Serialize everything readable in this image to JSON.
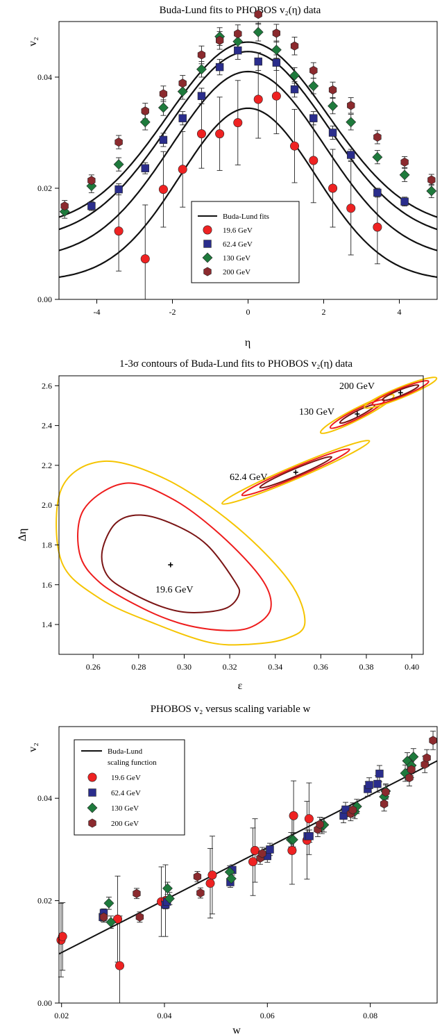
{
  "colors": {
    "c19": "#ee2222",
    "c62": "#2a2d8c",
    "c130": "#1e7a3c",
    "c200": "#8b2a2e",
    "fit": "#111111",
    "sig1": "#7a1414",
    "sig2": "#ee1c1c",
    "sig3": "#f5c400"
  },
  "chart_data": [
    {
      "type": "scatter",
      "title": "Buda-Lund fits to PHOBOS v₂(η) data",
      "xlabel": "η",
      "ylabel": "v₂",
      "xlim": [
        -5,
        5
      ],
      "ylim": [
        0,
        0.05
      ],
      "xticks": [
        -4,
        -2,
        0,
        2,
        4
      ],
      "yticks": [
        0.0,
        0.02,
        0.04
      ],
      "xtick_labels": [
        "-4",
        "-2",
        "0",
        "2",
        "4"
      ],
      "ytick_labels": [
        "0.00",
        "0.02",
        "0.04"
      ],
      "legend": {
        "position": "bottom-center",
        "entries": [
          "Buda-Lund fits",
          "19.6 GeV",
          "62.4 GeV",
          "130 GeV",
          "200 GeV"
        ]
      },
      "series": [
        {
          "name": "19.6 GeV",
          "marker": "circle",
          "color_key": "c19",
          "x": [
            -3.42,
            -2.72,
            -2.24,
            -1.73,
            -1.23,
            -0.75,
            -0.27,
            0.27,
            0.75,
            1.23,
            1.73,
            2.24,
            2.72,
            3.42
          ],
          "y": [
            0.0123,
            0.0073,
            0.0198,
            0.0234,
            0.0298,
            0.0298,
            0.0318,
            0.036,
            0.0366,
            0.0276,
            0.025,
            0.02,
            0.0164,
            0.013
          ],
          "err": [
            0.0072,
            0.0097,
            0.0068,
            0.0068,
            0.0062,
            0.0066,
            0.0076,
            0.007,
            0.0068,
            0.0066,
            0.0076,
            0.007,
            0.0084,
            0.0066
          ]
        },
        {
          "name": "62.4 GeV",
          "marker": "square",
          "color_key": "c62",
          "x": [
            -4.14,
            -3.42,
            -2.72,
            -2.24,
            -1.73,
            -1.23,
            -0.75,
            -0.27,
            0.27,
            0.75,
            1.23,
            1.73,
            2.24,
            2.72,
            3.42,
            4.14
          ],
          "y": [
            0.0168,
            0.0198,
            0.0236,
            0.0287,
            0.0326,
            0.0366,
            0.0418,
            0.0448,
            0.0428,
            0.0426,
            0.0378,
            0.0326,
            0.03,
            0.026,
            0.0192,
            0.0176
          ],
          "err": [
            0.0008,
            0.001,
            0.001,
            0.0012,
            0.0012,
            0.0014,
            0.0014,
            0.0016,
            0.0016,
            0.0014,
            0.0014,
            0.0012,
            0.0012,
            0.001,
            0.0008,
            0.0008
          ]
        },
        {
          "name": "130 GeV",
          "marker": "diamond",
          "color_key": "c130",
          "x": [
            -4.85,
            -4.14,
            -3.42,
            -2.72,
            -2.24,
            -1.73,
            -1.23,
            -0.75,
            -0.27,
            0.27,
            0.75,
            1.23,
            1.73,
            2.24,
            2.72,
            3.42,
            4.14,
            4.85
          ],
          "y": [
            0.0158,
            0.0204,
            0.0243,
            0.0319,
            0.0345,
            0.0374,
            0.0414,
            0.0473,
            0.0464,
            0.0481,
            0.0449,
            0.0403,
            0.0384,
            0.0348,
            0.0319,
            0.0256,
            0.0224,
            0.0195
          ],
          "err": [
            0.0012,
            0.0012,
            0.0012,
            0.0014,
            0.0014,
            0.0014,
            0.0014,
            0.0016,
            0.0016,
            0.0016,
            0.0016,
            0.0014,
            0.0014,
            0.0014,
            0.0014,
            0.0012,
            0.0012,
            0.0012
          ]
        },
        {
          "name": "200 GeV",
          "marker": "hexagon",
          "color_key": "c200",
          "x": [
            -4.85,
            -4.14,
            -3.42,
            -2.72,
            -2.24,
            -1.73,
            -1.23,
            -0.75,
            -0.27,
            0.27,
            0.75,
            1.23,
            1.73,
            2.24,
            2.72,
            3.42,
            4.14,
            4.85
          ],
          "y": [
            0.0168,
            0.0214,
            0.0283,
            0.0339,
            0.037,
            0.0389,
            0.044,
            0.0466,
            0.0478,
            0.0513,
            0.0479,
            0.0456,
            0.0412,
            0.0377,
            0.0349,
            0.0292,
            0.0247,
            0.0215
          ],
          "err": [
            0.001,
            0.001,
            0.0012,
            0.0014,
            0.0014,
            0.0014,
            0.0016,
            0.0016,
            0.0016,
            0.0018,
            0.0016,
            0.0016,
            0.0014,
            0.0014,
            0.0014,
            0.0012,
            0.001,
            0.001
          ]
        },
        {
          "name": "Buda-Lund fits",
          "type": "line",
          "color_key": "fit",
          "curves": [
            {
              "peak": 0.0344,
              "width": 1.8,
              "edge": 0.004
            },
            {
              "peak": 0.041,
              "width": 2.02,
              "edge": 0.0088
            },
            {
              "peak": 0.0446,
              "width": 2.1,
              "edge": 0.0126
            },
            {
              "peak": 0.0463,
              "width": 2.12,
              "edge": 0.0148
            }
          ]
        }
      ]
    },
    {
      "type": "contour",
      "title": "1-3σ contours of Buda-Lund fits to PHOBOS v₂(η) data",
      "xlabel": "ε",
      "ylabel": "Δη",
      "xlim": [
        0.245,
        0.405
      ],
      "ylim": [
        1.25,
        2.65
      ],
      "xticks": [
        0.26,
        0.28,
        0.3,
        0.32,
        0.34,
        0.36,
        0.38,
        0.4
      ],
      "yticks": [
        1.4,
        1.6,
        1.8,
        2.0,
        2.2,
        2.4,
        2.6
      ],
      "xtick_labels": [
        "0.26",
        "0.28",
        "0.30",
        "0.32",
        "0.34",
        "0.36",
        "0.38",
        "0.40"
      ],
      "ytick_labels": [
        "1.4",
        "1.6",
        "1.8",
        "2.0",
        "2.2",
        "2.4",
        "2.6"
      ],
      "sets": [
        {
          "label": "19.6 GeV",
          "center": [
            0.294,
            1.7
          ],
          "sigma1": [
            [
              0.281,
              1.95
            ],
            [
              0.296,
              1.9
            ],
            [
              0.31,
              1.8
            ],
            [
              0.322,
              1.62
            ],
            [
              0.324,
              1.55
            ],
            [
              0.318,
              1.48
            ],
            [
              0.303,
              1.46
            ],
            [
              0.29,
              1.49
            ],
            [
              0.275,
              1.57
            ],
            [
              0.266,
              1.65
            ],
            [
              0.264,
              1.77
            ],
            [
              0.27,
              1.91
            ]
          ],
          "sigma2": [
            [
              0.274,
              2.11
            ],
            [
              0.295,
              2.03
            ],
            [
              0.316,
              1.85
            ],
            [
              0.334,
              1.63
            ],
            [
              0.338,
              1.48
            ],
            [
              0.33,
              1.39
            ],
            [
              0.318,
              1.37
            ],
            [
              0.3,
              1.4
            ],
            [
              0.282,
              1.48
            ],
            [
              0.263,
              1.61
            ],
            [
              0.254,
              1.76
            ],
            [
              0.256,
              1.98
            ]
          ],
          "sigma3": [
            [
              0.264,
              2.22
            ],
            [
              0.292,
              2.13
            ],
            [
              0.322,
              1.9
            ],
            [
              0.346,
              1.62
            ],
            [
              0.353,
              1.41
            ],
            [
              0.345,
              1.33
            ],
            [
              0.328,
              1.3
            ],
            [
              0.311,
              1.31
            ],
            [
              0.288,
              1.4
            ],
            [
              0.263,
              1.53
            ],
            [
              0.246,
              1.72
            ],
            [
              0.246,
              2.08
            ]
          ]
        },
        {
          "label": "62.4 GeV",
          "center": [
            0.349,
            2.165
          ],
          "angle_deg": -23,
          "sigma1": [
            0.009,
            0.033
          ],
          "sigma2": [
            0.0135,
            0.045
          ],
          "sigma3": [
            0.0185,
            0.058
          ]
        },
        {
          "label": "130 GeV",
          "center": [
            0.376,
            2.458
          ],
          "angle_deg": -27,
          "sigma1": [
            0.0045,
            0.026
          ],
          "sigma2": [
            0.007,
            0.04
          ],
          "sigma3": [
            0.0095,
            0.052
          ]
        },
        {
          "label": "200 GeV",
          "center": [
            0.395,
            2.565
          ],
          "angle_deg": -22,
          "sigma1": [
            0.0045,
            0.026
          ],
          "sigma2": [
            0.007,
            0.037
          ],
          "sigma3": [
            0.009,
            0.048
          ]
        }
      ]
    },
    {
      "type": "scatter",
      "title": "PHOBOS v₂ versus scaling variable w",
      "xlabel": "w",
      "ylabel": "v₂",
      "xlim": [
        0.0195,
        0.093
      ],
      "ylim": [
        0,
        0.054
      ],
      "xticks": [
        0.02,
        0.04,
        0.06,
        0.08
      ],
      "yticks": [
        0.0,
        0.02,
        0.04
      ],
      "xtick_labels": [
        "0.02",
        "0.04",
        "0.06",
        "0.08"
      ],
      "ytick_labels": [
        "0.00",
        "0.02",
        "0.04"
      ],
      "legend": {
        "position": "top-left",
        "entries": [
          "Buda-Lund",
          "scaling function",
          "19.6 GeV",
          "62.4 GeV",
          "130 GeV",
          "200 GeV"
        ]
      },
      "series": [
        {
          "name": "19.6 GeV",
          "marker": "circle",
          "color_key": "c19",
          "x": [
            0.0199,
            0.0202,
            0.0309,
            0.0313,
            0.0394,
            0.0402,
            0.0489,
            0.0493,
            0.0572,
            0.0576,
            0.0648,
            0.0651,
            0.0677,
            0.0681
          ],
          "y": [
            0.0123,
            0.013,
            0.0164,
            0.0073,
            0.0198,
            0.02,
            0.0234,
            0.025,
            0.0276,
            0.0298,
            0.0298,
            0.0366,
            0.0318,
            0.036
          ],
          "err": [
            0.0072,
            0.0066,
            0.0084,
            0.0097,
            0.0068,
            0.007,
            0.0068,
            0.0076,
            0.0066,
            0.0062,
            0.0066,
            0.0068,
            0.0076,
            0.007
          ]
        },
        {
          "name": "62.4 GeV",
          "marker": "square",
          "color_key": "c62",
          "x": [
            0.028,
            0.0282,
            0.0402,
            0.0405,
            0.0528,
            0.0532,
            0.06,
            0.0605,
            0.0678,
            0.0682,
            0.0748,
            0.0752,
            0.0795,
            0.0798,
            0.0814,
            0.0818
          ],
          "y": [
            0.0168,
            0.0176,
            0.0192,
            0.0198,
            0.0236,
            0.026,
            0.0287,
            0.03,
            0.0326,
            0.0326,
            0.0366,
            0.0378,
            0.0418,
            0.0426,
            0.0428,
            0.0448
          ],
          "err": [
            0.0008,
            0.0008,
            0.0008,
            0.001,
            0.001,
            0.001,
            0.0012,
            0.0012,
            0.0012,
            0.0012,
            0.0014,
            0.0014,
            0.0014,
            0.0014,
            0.0016,
            0.0016
          ]
        },
        {
          "name": "130 GeV",
          "marker": "diamond",
          "color_key": "c130",
          "x": [
            0.0292,
            0.0296,
            0.0406,
            0.041,
            0.0527,
            0.053,
            0.0646,
            0.065,
            0.0706,
            0.071,
            0.077,
            0.0774,
            0.0827,
            0.083,
            0.0868,
            0.0872,
            0.088,
            0.0884
          ],
          "y": [
            0.0195,
            0.0158,
            0.0224,
            0.0204,
            0.0256,
            0.0243,
            0.0319,
            0.0319,
            0.0345,
            0.0348,
            0.0374,
            0.0384,
            0.0403,
            0.0414,
            0.0449,
            0.0473,
            0.0464,
            0.0481
          ],
          "err": [
            0.0012,
            0.0012,
            0.0012,
            0.0012,
            0.0012,
            0.0012,
            0.0014,
            0.0014,
            0.0014,
            0.0014,
            0.0014,
            0.0014,
            0.0014,
            0.0014,
            0.0016,
            0.0016,
            0.0016,
            0.0016
          ]
        },
        {
          "name": "200 GeV",
          "marker": "hexagon",
          "color_key": "c200",
          "x": [
            0.0282,
            0.0346,
            0.0352,
            0.0464,
            0.047,
            0.0586,
            0.059,
            0.0698,
            0.0702,
            0.0762,
            0.0766,
            0.0827,
            0.083,
            0.0876,
            0.088,
            0.0906,
            0.091,
            0.0922
          ],
          "y": [
            0.0168,
            0.0214,
            0.0168,
            0.0247,
            0.0215,
            0.0283,
            0.0292,
            0.0339,
            0.0349,
            0.037,
            0.0377,
            0.0389,
            0.0412,
            0.044,
            0.0456,
            0.0466,
            0.0479,
            0.0513
          ],
          "err": [
            0.001,
            0.001,
            0.001,
            0.001,
            0.001,
            0.0012,
            0.0012,
            0.0014,
            0.0014,
            0.0014,
            0.0014,
            0.0014,
            0.0014,
            0.0016,
            0.0016,
            0.0016,
            0.0016,
            0.0018
          ]
        },
        {
          "name": "Buda-Lund scaling function",
          "type": "line",
          "color_key": "fit",
          "x": [
            0.0195,
            0.093
          ],
          "y": [
            0.0096,
            0.0473
          ]
        }
      ]
    }
  ]
}
